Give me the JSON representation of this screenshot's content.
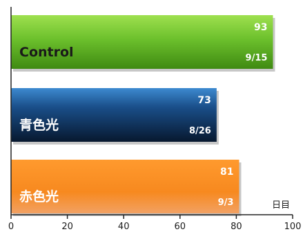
{
  "chart_data": {
    "type": "bar",
    "orientation": "horizontal",
    "categories": [
      "Control",
      "青色光",
      "赤色光"
    ],
    "values": [
      93,
      73,
      81
    ],
    "dates": [
      "9/15",
      "8/26",
      "9/3"
    ],
    "colors": [
      "#6cc02c",
      "#0e2a4f",
      "#f68a1f"
    ],
    "label_colors": [
      "#1a1a1a",
      "#ffffff",
      "#ffffff"
    ],
    "xlim": [
      0,
      100
    ],
    "xticks": [
      0,
      20,
      40,
      60,
      80,
      100
    ],
    "xlabel": "日目",
    "ylabel": "",
    "title": "",
    "grid": false
  }
}
